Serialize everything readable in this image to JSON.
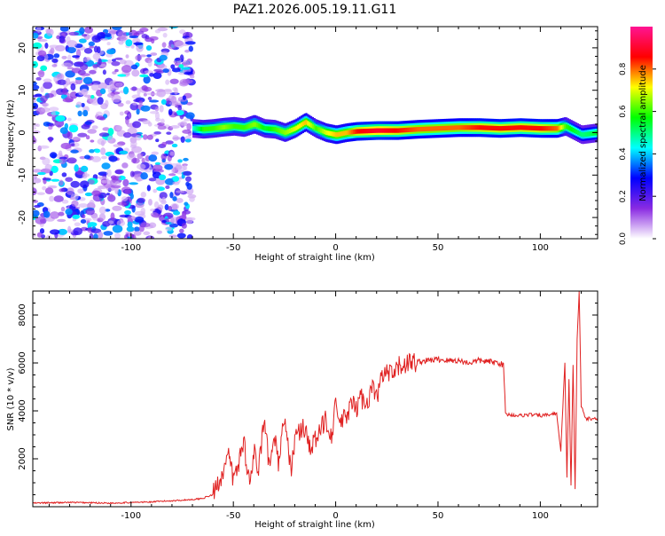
{
  "figure": {
    "title": "PAZ1.2026.005.19.11.G11"
  },
  "chart_data": [
    {
      "type": "heatmap",
      "title": "PAZ1.2026.005.19.11.G11",
      "xlabel": "Height of straight line (km)",
      "ylabel": "Frequency (Hz)",
      "xlim": [
        -148,
        128
      ],
      "ylim": [
        -25,
        25
      ],
      "x_ticks": [
        -100,
        -50,
        0,
        50,
        100
      ],
      "y_ticks": [
        -20,
        -10,
        0,
        10,
        20
      ],
      "grid": false,
      "colorbar": {
        "label": "Normalized spectral amplitude",
        "range": [
          0,
          1
        ],
        "ticks": [
          0.0,
          0.2,
          0.4,
          0.6,
          0.8
        ],
        "colors": [
          "#ffffff",
          "#8a2be2",
          "#0000ff",
          "#00ffff",
          "#00ff00",
          "#ffff00",
          "#ff0000",
          "#ff1493"
        ]
      },
      "ridge": {
        "x": [
          -70,
          -65,
          -60,
          -55,
          -50,
          -45,
          -40,
          -35,
          -30,
          -25,
          -20,
          -15,
          -10,
          -5,
          0,
          5,
          10,
          20,
          30,
          40,
          50,
          60,
          70,
          80,
          90,
          100,
          108,
          112,
          116,
          120,
          128
        ],
        "y": [
          1.0,
          0.8,
          1.0,
          1.3,
          1.5,
          1.2,
          2.0,
          1.0,
          0.8,
          0.0,
          1.0,
          2.5,
          1.0,
          0.0,
          -0.5,
          0.0,
          0.3,
          0.5,
          0.5,
          0.8,
          1.0,
          1.2,
          1.2,
          1.0,
          1.2,
          1.0,
          1.0,
          1.5,
          0.5,
          -0.5,
          0.0
        ],
        "amplitude": [
          0.45,
          0.6,
          0.6,
          0.65,
          0.6,
          0.6,
          0.65,
          0.55,
          0.6,
          0.65,
          0.7,
          0.75,
          0.6,
          0.7,
          0.75,
          0.75,
          0.85,
          0.9,
          0.85,
          0.8,
          0.8,
          0.8,
          0.85,
          0.85,
          0.85,
          0.85,
          0.8,
          0.6,
          0.55,
          0.5,
          0.55
        ]
      },
      "noise_region": {
        "x_range": [
          -148,
          -70
        ],
        "y_range": [
          -25,
          25
        ],
        "amplitude_range": [
          0.05,
          0.45
        ]
      }
    },
    {
      "type": "line",
      "xlabel": "Height of straight line (km)",
      "ylabel": "SNR (10 * v/v)",
      "xlim": [
        -148,
        128
      ],
      "ylim": [
        0,
        9000
      ],
      "x_ticks": [
        -100,
        -50,
        0,
        50,
        100
      ],
      "y_ticks": [
        2000,
        4000,
        6000,
        8000
      ],
      "grid": false,
      "color": "#e02020",
      "series": [
        {
          "x": [
            -148,
            -130,
            -110,
            -90,
            -80,
            -70,
            -65,
            -60,
            -58,
            -55,
            -52,
            -50,
            -48,
            -45,
            -42,
            -40,
            -38,
            -35,
            -32,
            -30,
            -28,
            -25,
            -22,
            -20,
            -18,
            -15,
            -12,
            -10,
            -8,
            -5,
            -2,
            0,
            2,
            5,
            8,
            10,
            12,
            15,
            18,
            20,
            22,
            25,
            28,
            30,
            35,
            40,
            45,
            50,
            55,
            60,
            65,
            70,
            75,
            80,
            82,
            83,
            84,
            90,
            95,
            100,
            105,
            108,
            110,
            112,
            113,
            114,
            115,
            116,
            117,
            118,
            119,
            120,
            122,
            125,
            128
          ],
          "y": [
            150,
            180,
            150,
            200,
            250,
            300,
            350,
            500,
            900,
            1500,
            2100,
            1100,
            1600,
            2800,
            900,
            2400,
            1300,
            3500,
            1400,
            3200,
            1800,
            3800,
            1500,
            2800,
            3100,
            3300,
            2400,
            2800,
            3000,
            3700,
            3000,
            4200,
            3500,
            3700,
            4300,
            4000,
            4600,
            4300,
            5000,
            4500,
            5300,
            5600,
            5400,
            5800,
            6000,
            6050,
            6100,
            6150,
            6100,
            6100,
            6000,
            6100,
            6050,
            6000,
            5900,
            3900,
            3850,
            3800,
            3850,
            3800,
            3850,
            3900,
            2300,
            6000,
            1200,
            5300,
            900,
            5900,
            750,
            7000,
            9000,
            4200,
            3700,
            3650,
            3700
          ]
        }
      ]
    }
  ]
}
